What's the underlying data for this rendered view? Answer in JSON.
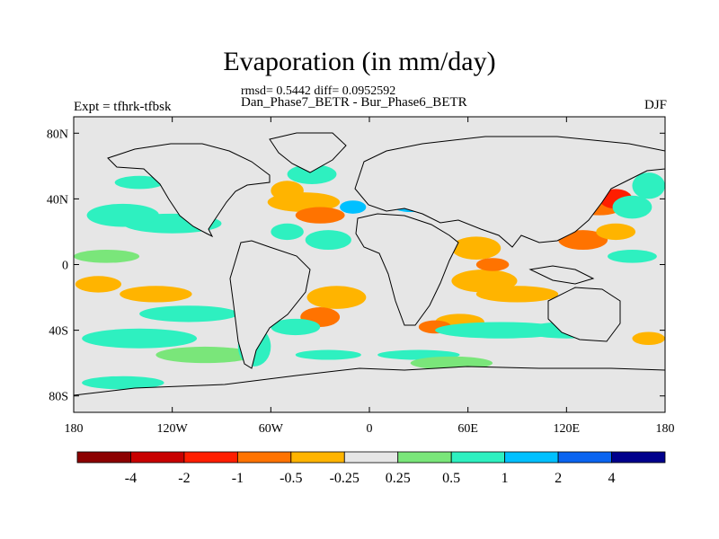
{
  "title": "Evaporation (in mm/day)",
  "stats_line": "rmsd= 0.5442 diff= 0.0952592",
  "difference_line": "Dan_Phase7_BETR - Bur_Phase6_BETR",
  "expt_line": "Expt = tfhrk-tfbsk",
  "season": "DJF",
  "map": {
    "projection": "cylindrical equidistant",
    "lon_range": [
      -180,
      180
    ],
    "lat_range": [
      -90,
      90
    ],
    "lat_ticks": [
      {
        "lat": 80,
        "label": "80N"
      },
      {
        "lat": 40,
        "label": "40N"
      },
      {
        "lat": 0,
        "label": "0"
      },
      {
        "lat": -40,
        "label": "40S"
      },
      {
        "lat": -80,
        "label": "80S"
      }
    ],
    "lon_ticks": [
      {
        "lon": -180,
        "label": "180"
      },
      {
        "lon": -120,
        "label": "120W"
      },
      {
        "lon": -60,
        "label": "60W"
      },
      {
        "lon": 0,
        "label": "0"
      },
      {
        "lon": 60,
        "label": "60E"
      },
      {
        "lon": 120,
        "label": "120E"
      },
      {
        "lon": 180,
        "label": "180"
      }
    ],
    "land_color": "#e6e6e6",
    "coastline_color": "#000000"
  },
  "colorbar": {
    "colors": [
      "#8c0000",
      "#c80000",
      "#ff1e00",
      "#ff7300",
      "#ffb400",
      "#e6e6e6",
      "#7ae67a",
      "#2ef0c0",
      "#00c0ff",
      "#0a64f0",
      "#00008c"
    ],
    "labels": [
      "-4",
      "-2",
      "-1",
      "-0.5",
      "-0.25",
      "0.25",
      "0.5",
      "1",
      "2",
      "4"
    ]
  },
  "field_patches": [
    {
      "lon": -120,
      "lat": 25,
      "rx": 30,
      "ry": 6,
      "level": 0.5
    },
    {
      "lon": -150,
      "lat": 30,
      "rx": 22,
      "ry": 7,
      "level": 0.5
    },
    {
      "lon": -160,
      "lat": 5,
      "rx": 20,
      "ry": 4,
      "level": 0.25
    },
    {
      "lon": -130,
      "lat": -18,
      "rx": 22,
      "ry": 5,
      "level": -0.5
    },
    {
      "lon": -165,
      "lat": -12,
      "rx": 14,
      "ry": 5,
      "level": -0.5
    },
    {
      "lon": -110,
      "lat": -30,
      "rx": 30,
      "ry": 5,
      "level": 0.5
    },
    {
      "lon": -140,
      "lat": -45,
      "rx": 35,
      "ry": 6,
      "level": 0.5
    },
    {
      "lon": -100,
      "lat": -55,
      "rx": 30,
      "ry": 5,
      "level": 0.25
    },
    {
      "lon": -70,
      "lat": -50,
      "rx": 10,
      "ry": 12,
      "level": 0.5
    },
    {
      "lon": -40,
      "lat": 38,
      "rx": 22,
      "ry": 6,
      "level": -0.5
    },
    {
      "lon": -30,
      "lat": 30,
      "rx": 15,
      "ry": 5,
      "level": -1
    },
    {
      "lon": -50,
      "lat": 45,
      "rx": 10,
      "ry": 6,
      "level": -0.5
    },
    {
      "lon": -35,
      "lat": 55,
      "rx": 15,
      "ry": 6,
      "level": 0.5
    },
    {
      "lon": -25,
      "lat": 15,
      "rx": 14,
      "ry": 6,
      "level": 0.5
    },
    {
      "lon": -50,
      "lat": 20,
      "rx": 10,
      "ry": 5,
      "level": 0.5
    },
    {
      "lon": -20,
      "lat": -20,
      "rx": 18,
      "ry": 7,
      "level": -0.5
    },
    {
      "lon": -30,
      "lat": -32,
      "rx": 12,
      "ry": 6,
      "level": -1
    },
    {
      "lon": -45,
      "lat": -38,
      "rx": 15,
      "ry": 5,
      "level": 0.5
    },
    {
      "lon": -10,
      "lat": 35,
      "rx": 8,
      "ry": 4,
      "level": 1
    },
    {
      "lon": 25,
      "lat": 35,
      "rx": 10,
      "ry": 3,
      "level": 1
    },
    {
      "lon": 65,
      "lat": 10,
      "rx": 15,
      "ry": 7,
      "level": -0.5
    },
    {
      "lon": 70,
      "lat": -10,
      "rx": 20,
      "ry": 7,
      "level": -0.5
    },
    {
      "lon": 75,
      "lat": 0,
      "rx": 10,
      "ry": 4,
      "level": -1
    },
    {
      "lon": 90,
      "lat": -18,
      "rx": 25,
      "ry": 5,
      "level": -0.5
    },
    {
      "lon": 55,
      "lat": -35,
      "rx": 15,
      "ry": 5,
      "level": -0.5
    },
    {
      "lon": 40,
      "lat": -38,
      "rx": 10,
      "ry": 4,
      "level": -1
    },
    {
      "lon": 80,
      "lat": -40,
      "rx": 40,
      "ry": 5,
      "level": 0.5
    },
    {
      "lon": 120,
      "lat": -40,
      "rx": 25,
      "ry": 5,
      "level": 0.5
    },
    {
      "lon": 140,
      "lat": 35,
      "rx": 14,
      "ry": 5,
      "level": -1
    },
    {
      "lon": 150,
      "lat": 40,
      "rx": 10,
      "ry": 6,
      "level": -2
    },
    {
      "lon": 160,
      "lat": 35,
      "rx": 12,
      "ry": 7,
      "level": 0.5
    },
    {
      "lon": 170,
      "lat": 48,
      "rx": 10,
      "ry": 8,
      "level": 0.5
    },
    {
      "lon": 130,
      "lat": 15,
      "rx": 15,
      "ry": 6,
      "level": -1
    },
    {
      "lon": 150,
      "lat": 20,
      "rx": 12,
      "ry": 5,
      "level": -0.5
    },
    {
      "lon": 160,
      "lat": 5,
      "rx": 15,
      "ry": 4,
      "level": 0.5
    },
    {
      "lon": 170,
      "lat": -45,
      "rx": 10,
      "ry": 4,
      "level": -0.5
    },
    {
      "lon": -25,
      "lat": -55,
      "rx": 20,
      "ry": 3,
      "level": 0.5
    },
    {
      "lon": 30,
      "lat": -55,
      "rx": 25,
      "ry": 3,
      "level": 0.5
    },
    {
      "lon": 50,
      "lat": -60,
      "rx": 25,
      "ry": 4,
      "level": 0.25
    },
    {
      "lon": -150,
      "lat": -72,
      "rx": 25,
      "ry": 4,
      "level": 0.5
    },
    {
      "lon": -140,
      "lat": 50,
      "rx": 15,
      "ry": 4,
      "level": 0.5
    }
  ]
}
